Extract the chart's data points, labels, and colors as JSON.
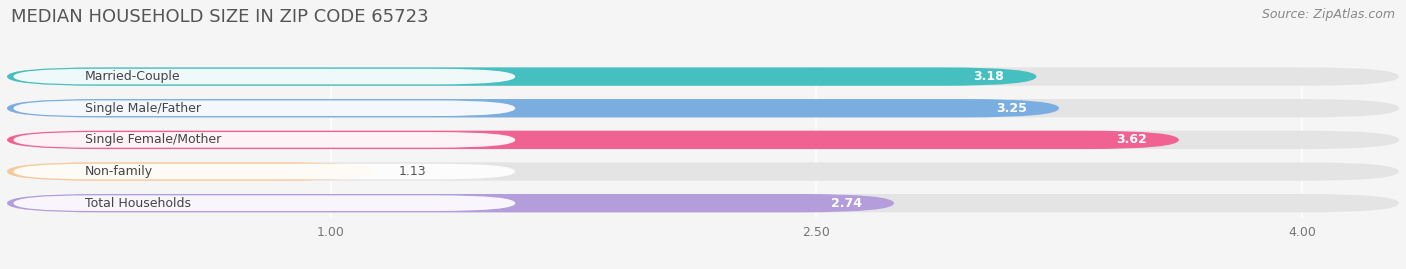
{
  "title": "MEDIAN HOUSEHOLD SIZE IN ZIP CODE 65723",
  "source": "Source: ZipAtlas.com",
  "categories": [
    "Married-Couple",
    "Single Male/Father",
    "Single Female/Mother",
    "Non-family",
    "Total Households"
  ],
  "values": [
    3.18,
    3.25,
    3.62,
    1.13,
    2.74
  ],
  "bar_colors": [
    "#45BFBF",
    "#7BAEE0",
    "#F06292",
    "#F5C99A",
    "#B39DDB"
  ],
  "background_color": "#f5f5f5",
  "bar_bg_color": "#e4e4e4",
  "xlim_data": [
    0,
    4.3
  ],
  "xstart": 0.0,
  "xticks": [
    1.0,
    2.5,
    4.0
  ],
  "title_fontsize": 13,
  "label_fontsize": 9,
  "value_fontsize": 9,
  "source_fontsize": 9,
  "bar_height": 0.58
}
